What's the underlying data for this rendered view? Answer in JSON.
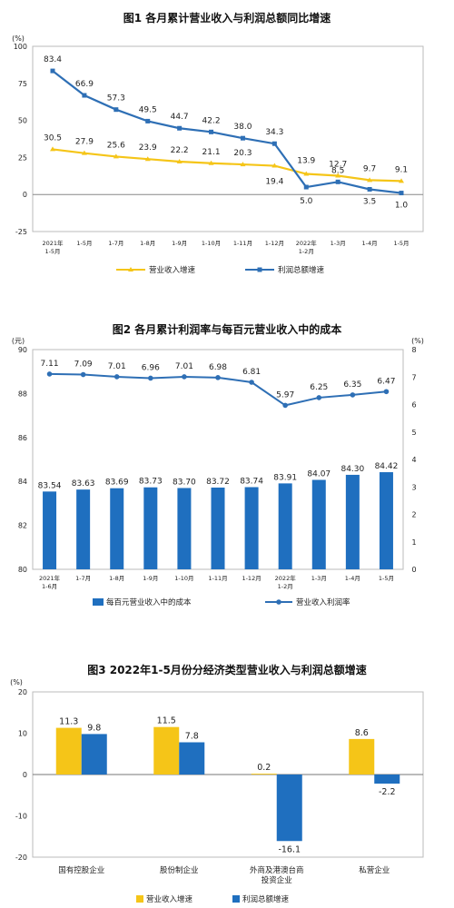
{
  "chart_data": [
    {
      "type": "line",
      "title": "图1  各月累计营业收入与利润总额同比增速",
      "unit": "(%)",
      "categories": [
        "2021年\n1-5月",
        "1-5月",
        "1-7月",
        "1-8月",
        "1-9月",
        "1-10月",
        "1-11月",
        "1-12月",
        "2022年\n1-2月",
        "1-3月",
        "1-4月",
        "1-5月"
      ],
      "ylim": [
        -25,
        100
      ],
      "yticks": [
        "-25",
        "0",
        "25",
        "50",
        "75",
        "100"
      ],
      "series": [
        {
          "name": "营业收入增速",
          "color": "#f5c518",
          "values": [
            30.5,
            27.9,
            25.6,
            23.9,
            22.2,
            21.1,
            20.3,
            19.4,
            13.9,
            12.7,
            9.7,
            9.1
          ],
          "labels": [
            "30.5",
            "27.9",
            "25.6",
            "23.9",
            "22.2",
            "21.1",
            "20.3",
            "19.4",
            "13.9",
            "12.7",
            "9.7",
            "9.1"
          ]
        },
        {
          "name": "利润总额增速",
          "color": "#2e6fb5",
          "values": [
            83.4,
            66.9,
            57.3,
            49.5,
            44.7,
            42.2,
            38.0,
            34.3,
            5.0,
            8.5,
            3.5,
            1.0
          ],
          "labels": [
            "83.4",
            "66.9",
            "57.3",
            "49.5",
            "44.7",
            "42.2",
            "38.0",
            "34.3",
            "5.0",
            "8.5",
            "3.5",
            "1.0"
          ]
        }
      ],
      "legend": "bottom"
    },
    {
      "type": "bar+line",
      "title": "图2  各月累计利润率与每百元营业收入中的成本",
      "left_unit": "(元)",
      "right_unit": "(%)",
      "categories": [
        "2021年\n1-6月",
        "1-7月",
        "1-8月",
        "1-9月",
        "1-10月",
        "1-11月",
        "1-12月",
        "2022年\n1-2月",
        "1-3月",
        "1-4月",
        "1-5月"
      ],
      "ylim_left": [
        80,
        90
      ],
      "yticks_left": [
        "80",
        "82",
        "84",
        "86",
        "88",
        "90"
      ],
      "ylim_right": [
        0,
        8
      ],
      "yticks_right": [
        "0",
        "1",
        "2",
        "3",
        "4",
        "5",
        "6",
        "7",
        "8"
      ],
      "series": [
        {
          "name": "每百元营业收入中的成本",
          "kind": "bar",
          "axis": "left",
          "color": "#1f6fbf",
          "values": [
            83.54,
            83.63,
            83.69,
            83.73,
            83.7,
            83.72,
            83.74,
            83.91,
            84.07,
            84.3,
            84.42
          ],
          "labels": [
            "83.54",
            "83.63",
            "83.69",
            "83.73",
            "83.70",
            "83.72",
            "83.74",
            "83.91",
            "84.07",
            "84.30",
            "84.42"
          ]
        },
        {
          "name": "营业收入利润率",
          "kind": "line",
          "axis": "right",
          "color": "#2e6fb5",
          "values": [
            7.11,
            7.09,
            7.01,
            6.96,
            7.01,
            6.98,
            6.81,
            5.97,
            6.25,
            6.35,
            6.47
          ],
          "labels": [
            "7.11",
            "7.09",
            "7.01",
            "6.96",
            "7.01",
            "6.98",
            "6.81",
            "5.97",
            "6.25",
            "6.35",
            "6.47"
          ]
        }
      ],
      "legend": "bottom"
    },
    {
      "type": "bar",
      "title": "图3  2022年1-5月份分经济类型营业收入与利润总额增速",
      "unit": "(%)",
      "categories": [
        "国有控股企业",
        "股份制企业",
        "外商及港澳台商\n投资企业",
        "私营企业"
      ],
      "ylim": [
        -20,
        20
      ],
      "yticks": [
        "-20",
        "-10",
        "0",
        "10",
        "20"
      ],
      "series": [
        {
          "name": "营业收入增速",
          "color": "#f5c518",
          "values": [
            11.3,
            11.5,
            0.2,
            8.6
          ],
          "labels": [
            "11.3",
            "11.5",
            "0.2",
            "8.6"
          ]
        },
        {
          "name": "利润总额增速",
          "color": "#1f6fbf",
          "values": [
            9.8,
            7.8,
            -16.1,
            -2.2
          ],
          "labels": [
            "9.8",
            "7.8",
            "-16.1",
            "-2.2"
          ]
        }
      ],
      "legend": "bottom"
    }
  ]
}
